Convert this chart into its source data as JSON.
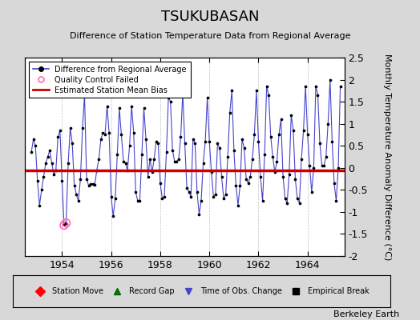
{
  "title": "TSUKUBASAN",
  "subtitle": "Difference of Station Temperature Data from Regional Average",
  "ylabel": "Monthly Temperature Anomaly Difference (°C)",
  "ylim": [
    -2.0,
    2.5
  ],
  "yticks": [
    -2.0,
    -1.5,
    -1.0,
    -0.5,
    0.0,
    0.5,
    1.0,
    1.5,
    2.0,
    2.5
  ],
  "xlim": [
    1952.5,
    1965.5
  ],
  "xticks": [
    1954,
    1956,
    1958,
    1960,
    1962,
    1964
  ],
  "bias": -0.05,
  "line_color": "#4444cc",
  "dot_color": "#000000",
  "bias_color": "#cc0000",
  "background_color": "#d8d8d8",
  "plot_bg_color": "#ffffff",
  "watermark": "Berkeley Earth",
  "values": [
    0.35,
    0.65,
    0.5,
    -0.3,
    -0.85,
    -0.5,
    -0.2,
    0.1,
    0.25,
    0.4,
    0.1,
    -0.15,
    -0.05,
    0.7,
    0.85,
    -0.3,
    -1.3,
    -1.25,
    0.1,
    0.9,
    0.55,
    -0.4,
    -0.6,
    -0.75,
    -0.25,
    0.9,
    1.65,
    -0.25,
    -0.4,
    -0.37,
    -0.37,
    -0.38,
    -0.05,
    0.2,
    0.65,
    0.8,
    0.75,
    1.4,
    0.8,
    -0.65,
    -1.1,
    -0.7,
    0.3,
    1.35,
    0.75,
    0.15,
    0.1,
    -0.05,
    0.5,
    1.4,
    0.8,
    -0.55,
    -0.75,
    -0.75,
    0.3,
    1.35,
    0.65,
    -0.2,
    0.2,
    -0.1,
    0.2,
    0.6,
    0.55,
    -0.35,
    -0.7,
    -0.65,
    0.35,
    1.6,
    1.5,
    0.4,
    0.15,
    0.15,
    0.2,
    0.7,
    1.7,
    0.55,
    -0.45,
    -0.55,
    -0.65,
    0.65,
    0.55,
    -0.55,
    -1.05,
    -0.75,
    0.1,
    0.6,
    1.6,
    0.6,
    -0.1,
    -0.65,
    -0.6,
    0.55,
    0.45,
    -0.2,
    -0.7,
    -0.6,
    0.25,
    1.25,
    1.75,
    0.4,
    -0.4,
    -0.85,
    -0.4,
    0.65,
    0.45,
    -0.25,
    -0.35,
    -0.2,
    0.2,
    0.75,
    1.75,
    0.6,
    -0.2,
    -0.75,
    0.3,
    1.85,
    1.65,
    0.7,
    0.25,
    -0.1,
    0.15,
    0.75,
    1.1,
    -0.2,
    -0.7,
    -0.8,
    -0.15,
    1.2,
    0.85,
    -0.25,
    -0.7,
    -0.8,
    0.2,
    0.85,
    1.85,
    0.75,
    0.05,
    -0.55,
    0.0,
    1.85,
    1.65,
    0.55,
    0.05,
    0.05,
    0.25,
    1.0,
    2.0,
    0.6,
    -0.35,
    -0.75,
    0.0,
    1.85
  ],
  "qc_failed_indices": [
    16,
    17
  ]
}
